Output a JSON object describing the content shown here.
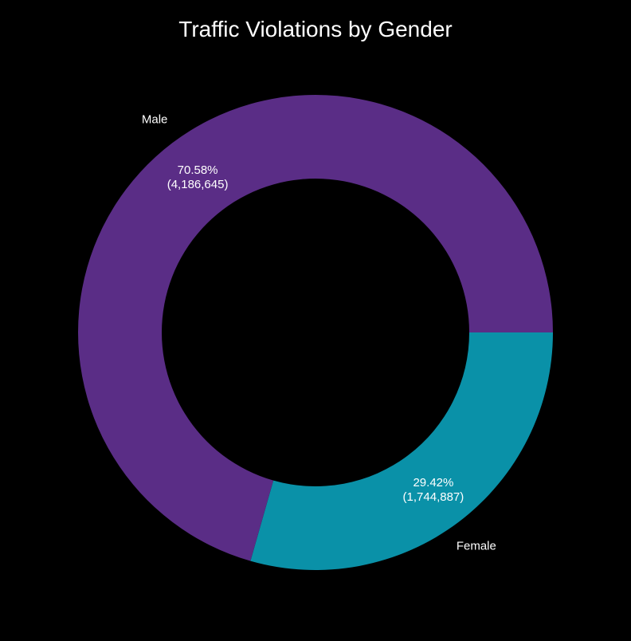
{
  "chart_data": {
    "type": "pie",
    "title": "Traffic Violations by Gender",
    "donut": true,
    "start_angle_deg": 0,
    "direction": "clockwise",
    "background_color": "#000000",
    "text_color": "#ffffff",
    "slices": [
      {
        "label": "Female",
        "value": 1744887,
        "percent": 29.42,
        "percent_label": "29.42%",
        "count_label": "(1,744,887)",
        "color": "#0A91A8"
      },
      {
        "label": "Male",
        "value": 4186645,
        "percent": 70.58,
        "percent_label": "70.58%",
        "count_label": "(4,186,645)",
        "color": "#5A2D86"
      }
    ]
  }
}
